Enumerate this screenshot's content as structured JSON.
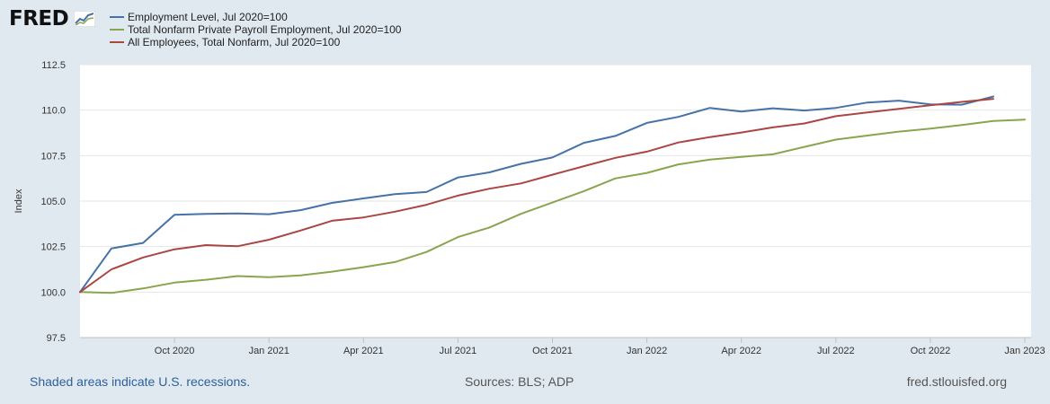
{
  "logo": {
    "text": "FRED",
    "icon": "line-chart-icon"
  },
  "chart_data": {
    "type": "line",
    "ylabel": "Index",
    "xlabel": "",
    "ylim": [
      97.5,
      112.5
    ],
    "yticks": [
      97.5,
      100.0,
      102.5,
      105.0,
      107.5,
      110.0,
      112.5
    ],
    "ytick_labels": [
      "97.5",
      "100.0",
      "102.5",
      "105.0",
      "107.5",
      "110.0",
      "112.5"
    ],
    "x_range_months": [
      0,
      30.2
    ],
    "xticks": [
      {
        "label": "Oct 2020",
        "month": 3
      },
      {
        "label": "Jan 2021",
        "month": 6
      },
      {
        "label": "Apr 2021",
        "month": 9
      },
      {
        "label": "Jul 2021",
        "month": 12
      },
      {
        "label": "Oct 2021",
        "month": 15
      },
      {
        "label": "Jan 2022",
        "month": 18
      },
      {
        "label": "Apr 2022",
        "month": 21
      },
      {
        "label": "Jul 2022",
        "month": 24
      },
      {
        "label": "Oct 2022",
        "month": 27
      },
      {
        "label": "Jan 2023",
        "month": 30
      }
    ],
    "x_start": "Jul 2020",
    "grid": true,
    "series": [
      {
        "name": "Employment Level, Jul 2020=100",
        "color": "#4572a7",
        "values": [
          100.0,
          102.4,
          102.7,
          104.25,
          104.3,
          104.32,
          104.28,
          104.5,
          104.9,
          105.15,
          105.38,
          105.5,
          106.3,
          106.58,
          107.05,
          107.4,
          108.2,
          108.58,
          109.3,
          109.63,
          110.12,
          109.92,
          110.1,
          109.98,
          110.12,
          110.42,
          110.52,
          110.32,
          110.3,
          110.75
        ]
      },
      {
        "name": "Total Nonfarm Private Payroll Employment, Jul 2020=100",
        "color": "#89a54e",
        "values": [
          100.0,
          99.95,
          100.2,
          100.52,
          100.68,
          100.88,
          100.82,
          100.92,
          101.12,
          101.37,
          101.65,
          102.2,
          103.02,
          103.55,
          104.3,
          104.92,
          105.55,
          106.25,
          106.55,
          107.02,
          107.28,
          107.43,
          107.57,
          107.98,
          108.38,
          108.6,
          108.82,
          108.98,
          109.18,
          109.4,
          109.48
        ]
      },
      {
        "name": "All Employees, Total Nonfarm, Jul 2020=100",
        "color": "#aa4643",
        "values": [
          100.0,
          101.25,
          101.9,
          102.35,
          102.58,
          102.52,
          102.88,
          103.38,
          103.92,
          104.1,
          104.42,
          104.8,
          105.3,
          105.68,
          105.97,
          106.45,
          106.92,
          107.38,
          107.72,
          108.22,
          108.52,
          108.77,
          109.05,
          109.27,
          109.67,
          109.87,
          110.07,
          110.27,
          110.45,
          110.62
        ]
      }
    ]
  },
  "footer": {
    "recessions": "Shaded areas indicate U.S. recessions.",
    "sources": "Sources: BLS; ADP",
    "url": "fred.stlouisfed.org"
  }
}
